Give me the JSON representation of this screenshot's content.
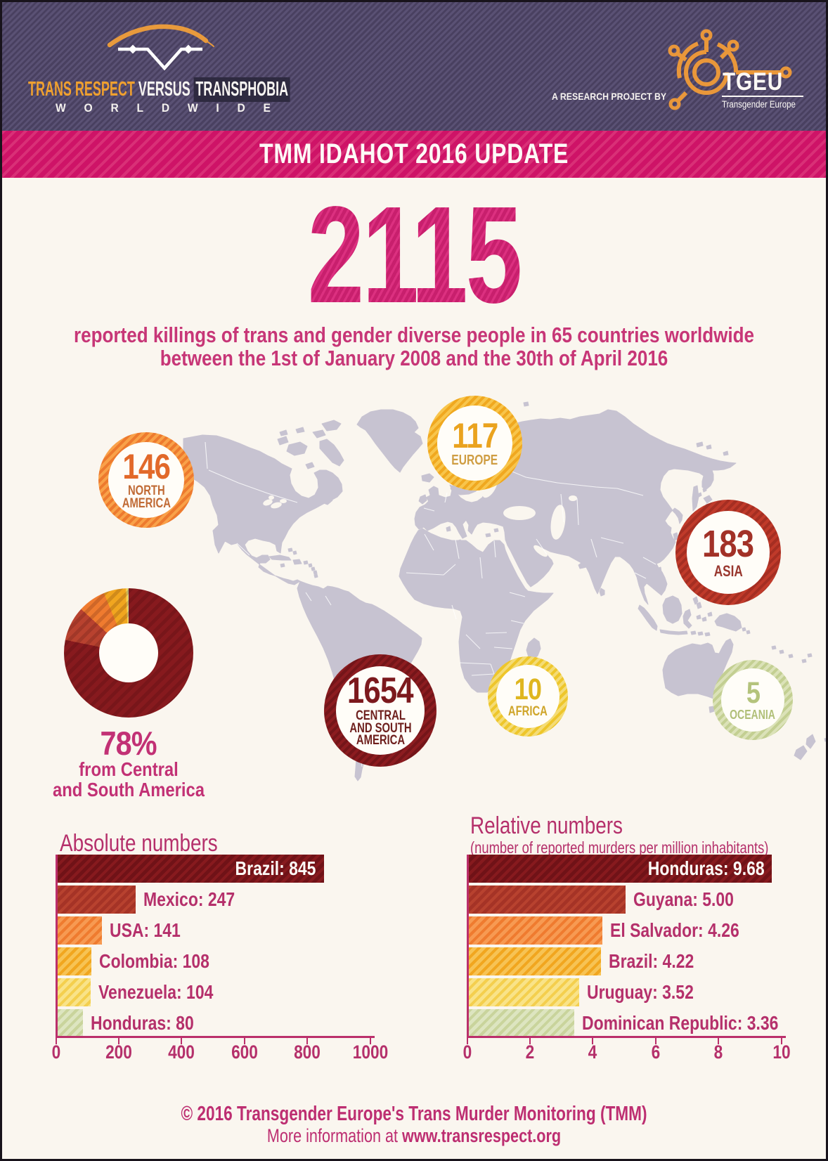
{
  "palette": {
    "maroon": "#871a1e",
    "maroon_stripe": "#701217",
    "red": "#b8422f",
    "red_stripe": "#a53326",
    "orange": "#ef7b2f",
    "orange_stripe": "#f79a52",
    "amber": "#f1a61f",
    "amber_stripe": "#f7c354",
    "yellow": "#f4cf4e",
    "yellow_stripe": "#f9e388",
    "green": "#c9d49c",
    "green_stripe": "#dde5c0",
    "magenta_text": "#b5306b",
    "banner_pink": "#ce1367",
    "hero_pink": "#c81f6d",
    "header_purple": "#494060",
    "map_fill": "#c7c3d1",
    "page_bg": "#faf6ef"
  },
  "header": {
    "logo": {
      "word1": "TRANS RESPECT",
      "word2": "VERSUS",
      "word3": "TRANSPHOBIA",
      "line2": "WORLDWIDE"
    },
    "research_note": "A RESEARCH PROJECT BY",
    "tgeu": {
      "name": "TGEU",
      "subtitle": "Transgender Europe"
    }
  },
  "banner": {
    "title": "TMM IDAHOT 2016 UPDATE"
  },
  "hero": {
    "number": "2115",
    "line1": "reported killings of trans and gender diverse people in 65 countries worldwide",
    "line2": "between the 1st of January 2008 and the 30th of April 2016"
  },
  "regions": [
    {
      "value": "146",
      "label": "NORTH\nAMERICA",
      "ring1": "#ed7a2e",
      "ring2": "#f9a149",
      "num_color": "#e2692a",
      "label_color": "#c06a35"
    },
    {
      "value": "117",
      "label": "EUROPE",
      "ring1": "#f0a81f",
      "ring2": "#f8c54b",
      "num_color": "#eaa31f",
      "label_color": "#cf9d42"
    },
    {
      "value": "183",
      "label": "ASIA",
      "ring1": "#c03a2a",
      "ring2": "#a52e22",
      "num_color": "#a23127",
      "label_color": "#99372e"
    },
    {
      "value": "1654",
      "label": "CENTRAL\nAND SOUTH\nAMERICA",
      "ring1": "#8c1c20",
      "ring2": "#741519",
      "num_color": "#7c191d",
      "label_color": "#6e1f1d"
    },
    {
      "value": "10",
      "label": "AFRICA",
      "ring1": "#eec62b",
      "ring2": "#f4dc76",
      "num_color": "#dfb61f",
      "label_color": "#cfa52a"
    },
    {
      "value": "5",
      "label": "OCEANIA",
      "ring1": "#c3cf92",
      "ring2": "#dbe2b8",
      "num_color": "#b4c37c",
      "label_color": "#b0bf78"
    }
  ],
  "donut_caption": {
    "percent": "78%",
    "line1": "from Central",
    "line2": "and South America"
  },
  "chart_data": [
    {
      "type": "pie",
      "hole": 0.45,
      "title": "78% from Central and South America",
      "labels": [
        "Central and South America",
        "Asia",
        "North America",
        "Europe",
        "Africa",
        "Oceania"
      ],
      "values": [
        1654,
        183,
        146,
        117,
        10,
        5
      ],
      "colors": [
        "#871a1e",
        "#b8422f",
        "#ef7b2f",
        "#f1a61f",
        "#f4cf4e",
        "#c9d49c"
      ],
      "annotation": "78% from Central and South America"
    },
    {
      "type": "bar",
      "orientation": "horizontal",
      "title": "Absolute numbers",
      "categories": [
        "Brazil",
        "Mexico",
        "USA",
        "Colombia",
        "Venezuela",
        "Honduras"
      ],
      "values": [
        845,
        247,
        141,
        108,
        104,
        80
      ],
      "bar_labels": [
        "Brazil: 845",
        "Mexico: 247",
        "USA: 141",
        "Colombia: 108",
        "Venezuela: 104",
        "Honduras: 80"
      ],
      "colors": [
        "#871a1e",
        "#b8422f",
        "#ef7b2f",
        "#f1a61f",
        "#f4cf4e",
        "#c9d49c"
      ],
      "stripes": [
        "#701217",
        "#a53326",
        "#f79a52",
        "#f7c354",
        "#f9e388",
        "#dde5c0"
      ],
      "xlim": [
        0,
        1000
      ],
      "xticks": [
        "0",
        "200",
        "400",
        "600",
        "800",
        "1000"
      ]
    },
    {
      "type": "bar",
      "orientation": "horizontal",
      "title": "Relative numbers",
      "subtitle": "(number of reported murders per million inhabitants)",
      "categories": [
        "Honduras",
        "Guyana",
        "El Salvador",
        "Brazil",
        "Uruguay",
        "Dominican Republic"
      ],
      "values": [
        9.68,
        5.0,
        4.26,
        4.22,
        3.52,
        3.36
      ],
      "bar_labels": [
        "Honduras: 9.68",
        "Guyana: 5.00",
        "El Salvador: 4.26",
        "Brazil: 4.22",
        "Uruguay: 3.52",
        "Dominican Republic: 3.36"
      ],
      "colors": [
        "#871a1e",
        "#b8422f",
        "#ef7b2f",
        "#f1a61f",
        "#f4cf4e",
        "#c9d49c"
      ],
      "stripes": [
        "#701217",
        "#a53326",
        "#f79a52",
        "#f7c354",
        "#f9e388",
        "#dde5c0"
      ],
      "xlim": [
        0,
        10
      ],
      "xticks": [
        "0",
        "2",
        "4",
        "6",
        "8",
        "10"
      ]
    }
  ],
  "footer": {
    "line1": "© 2016 Transgender Europe's Trans Murder Monitoring (TMM)",
    "line2_prefix": "More information at ",
    "line2_bold": "www.transrespect.org"
  }
}
